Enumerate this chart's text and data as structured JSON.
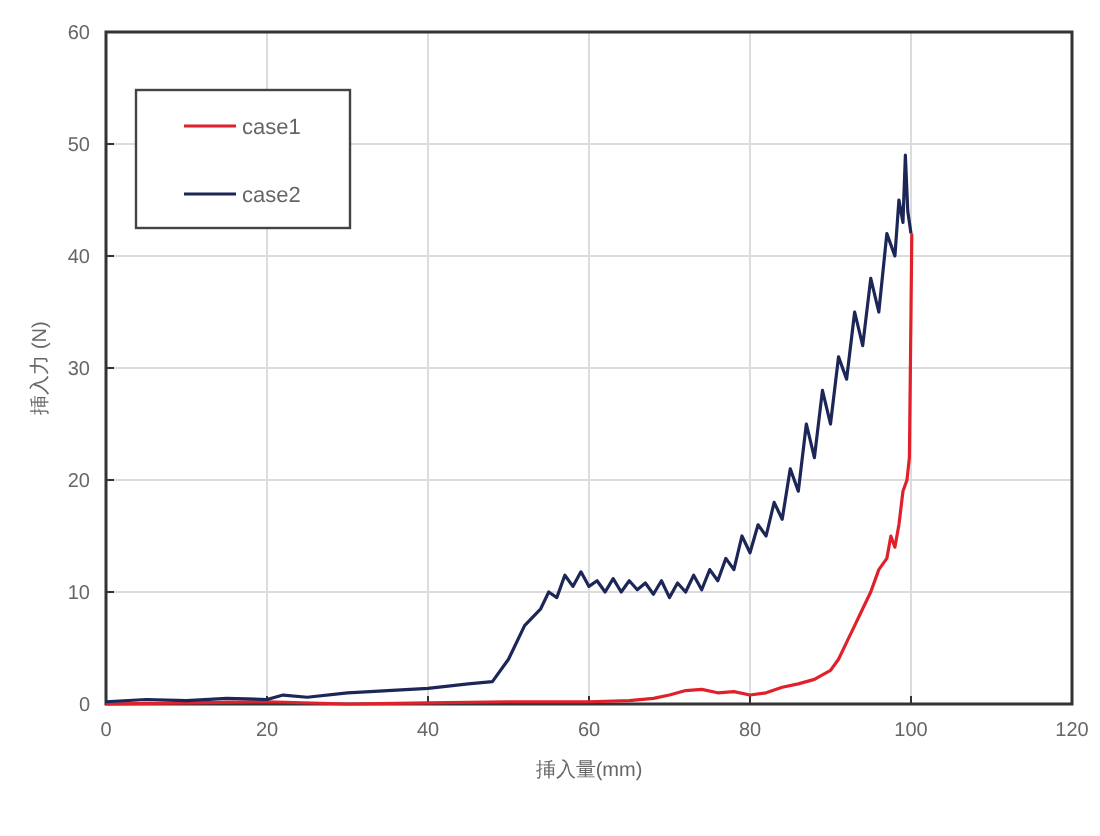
{
  "chart_data": {
    "type": "line",
    "xlabel": "挿入量(mm)",
    "ylabel": "挿入力 (N)",
    "xlim": [
      0,
      120
    ],
    "ylim": [
      0,
      60
    ],
    "xticks": [
      0,
      20,
      40,
      60,
      80,
      100,
      120
    ],
    "yticks": [
      0,
      10,
      20,
      30,
      40,
      50,
      60
    ],
    "grid": true,
    "legend": "top left",
    "line_style": "solid",
    "marker": "none",
    "series": [
      {
        "name": "case1",
        "color": "#e0202a",
        "x": [
          0,
          10,
          20,
          30,
          40,
          50,
          60,
          65,
          68,
          70,
          72,
          74,
          76,
          78,
          80,
          82,
          84,
          86,
          88,
          90,
          91,
          92,
          93,
          94,
          95,
          96,
          97,
          97.5,
          98,
          98.5,
          99,
          99.5,
          99.8,
          100,
          100.1
        ],
        "values": [
          0,
          0.1,
          0.2,
          0,
          0.1,
          0.2,
          0.2,
          0.3,
          0.5,
          0.8,
          1.2,
          1.3,
          1,
          1.1,
          0.8,
          1,
          1.5,
          1.8,
          2.2,
          3,
          4,
          5.5,
          7,
          8.5,
          10,
          12,
          13,
          15,
          14,
          16,
          19,
          20,
          22,
          35,
          42
        ]
      },
      {
        "name": "case2",
        "color": "#1c2758",
        "x": [
          0,
          5,
          10,
          15,
          20,
          22,
          25,
          30,
          35,
          40,
          45,
          48,
          50,
          52,
          54,
          55,
          56,
          57,
          58,
          59,
          60,
          61,
          62,
          63,
          64,
          65,
          66,
          67,
          68,
          69,
          70,
          71,
          72,
          73,
          74,
          75,
          76,
          77,
          78,
          79,
          80,
          81,
          82,
          83,
          84,
          85,
          86,
          87,
          88,
          89,
          90,
          91,
          92,
          93,
          94,
          95,
          96,
          97,
          98,
          98.5,
          99,
          99.3,
          99.6,
          100
        ],
        "values": [
          0.2,
          0.4,
          0.3,
          0.5,
          0.4,
          0.8,
          0.6,
          1,
          1.2,
          1.4,
          1.8,
          2,
          4,
          7,
          8.5,
          10,
          9.5,
          11.5,
          10.5,
          11.8,
          10.5,
          11,
          10,
          11.2,
          10,
          11,
          10.2,
          10.8,
          9.8,
          11,
          9.5,
          10.8,
          10,
          11.5,
          10.2,
          12,
          11,
          13,
          12,
          15,
          13.5,
          16,
          15,
          18,
          16.5,
          21,
          19,
          25,
          22,
          28,
          25,
          31,
          29,
          35,
          32,
          38,
          35,
          42,
          40,
          45,
          43,
          49,
          44,
          42
        ]
      }
    ]
  }
}
